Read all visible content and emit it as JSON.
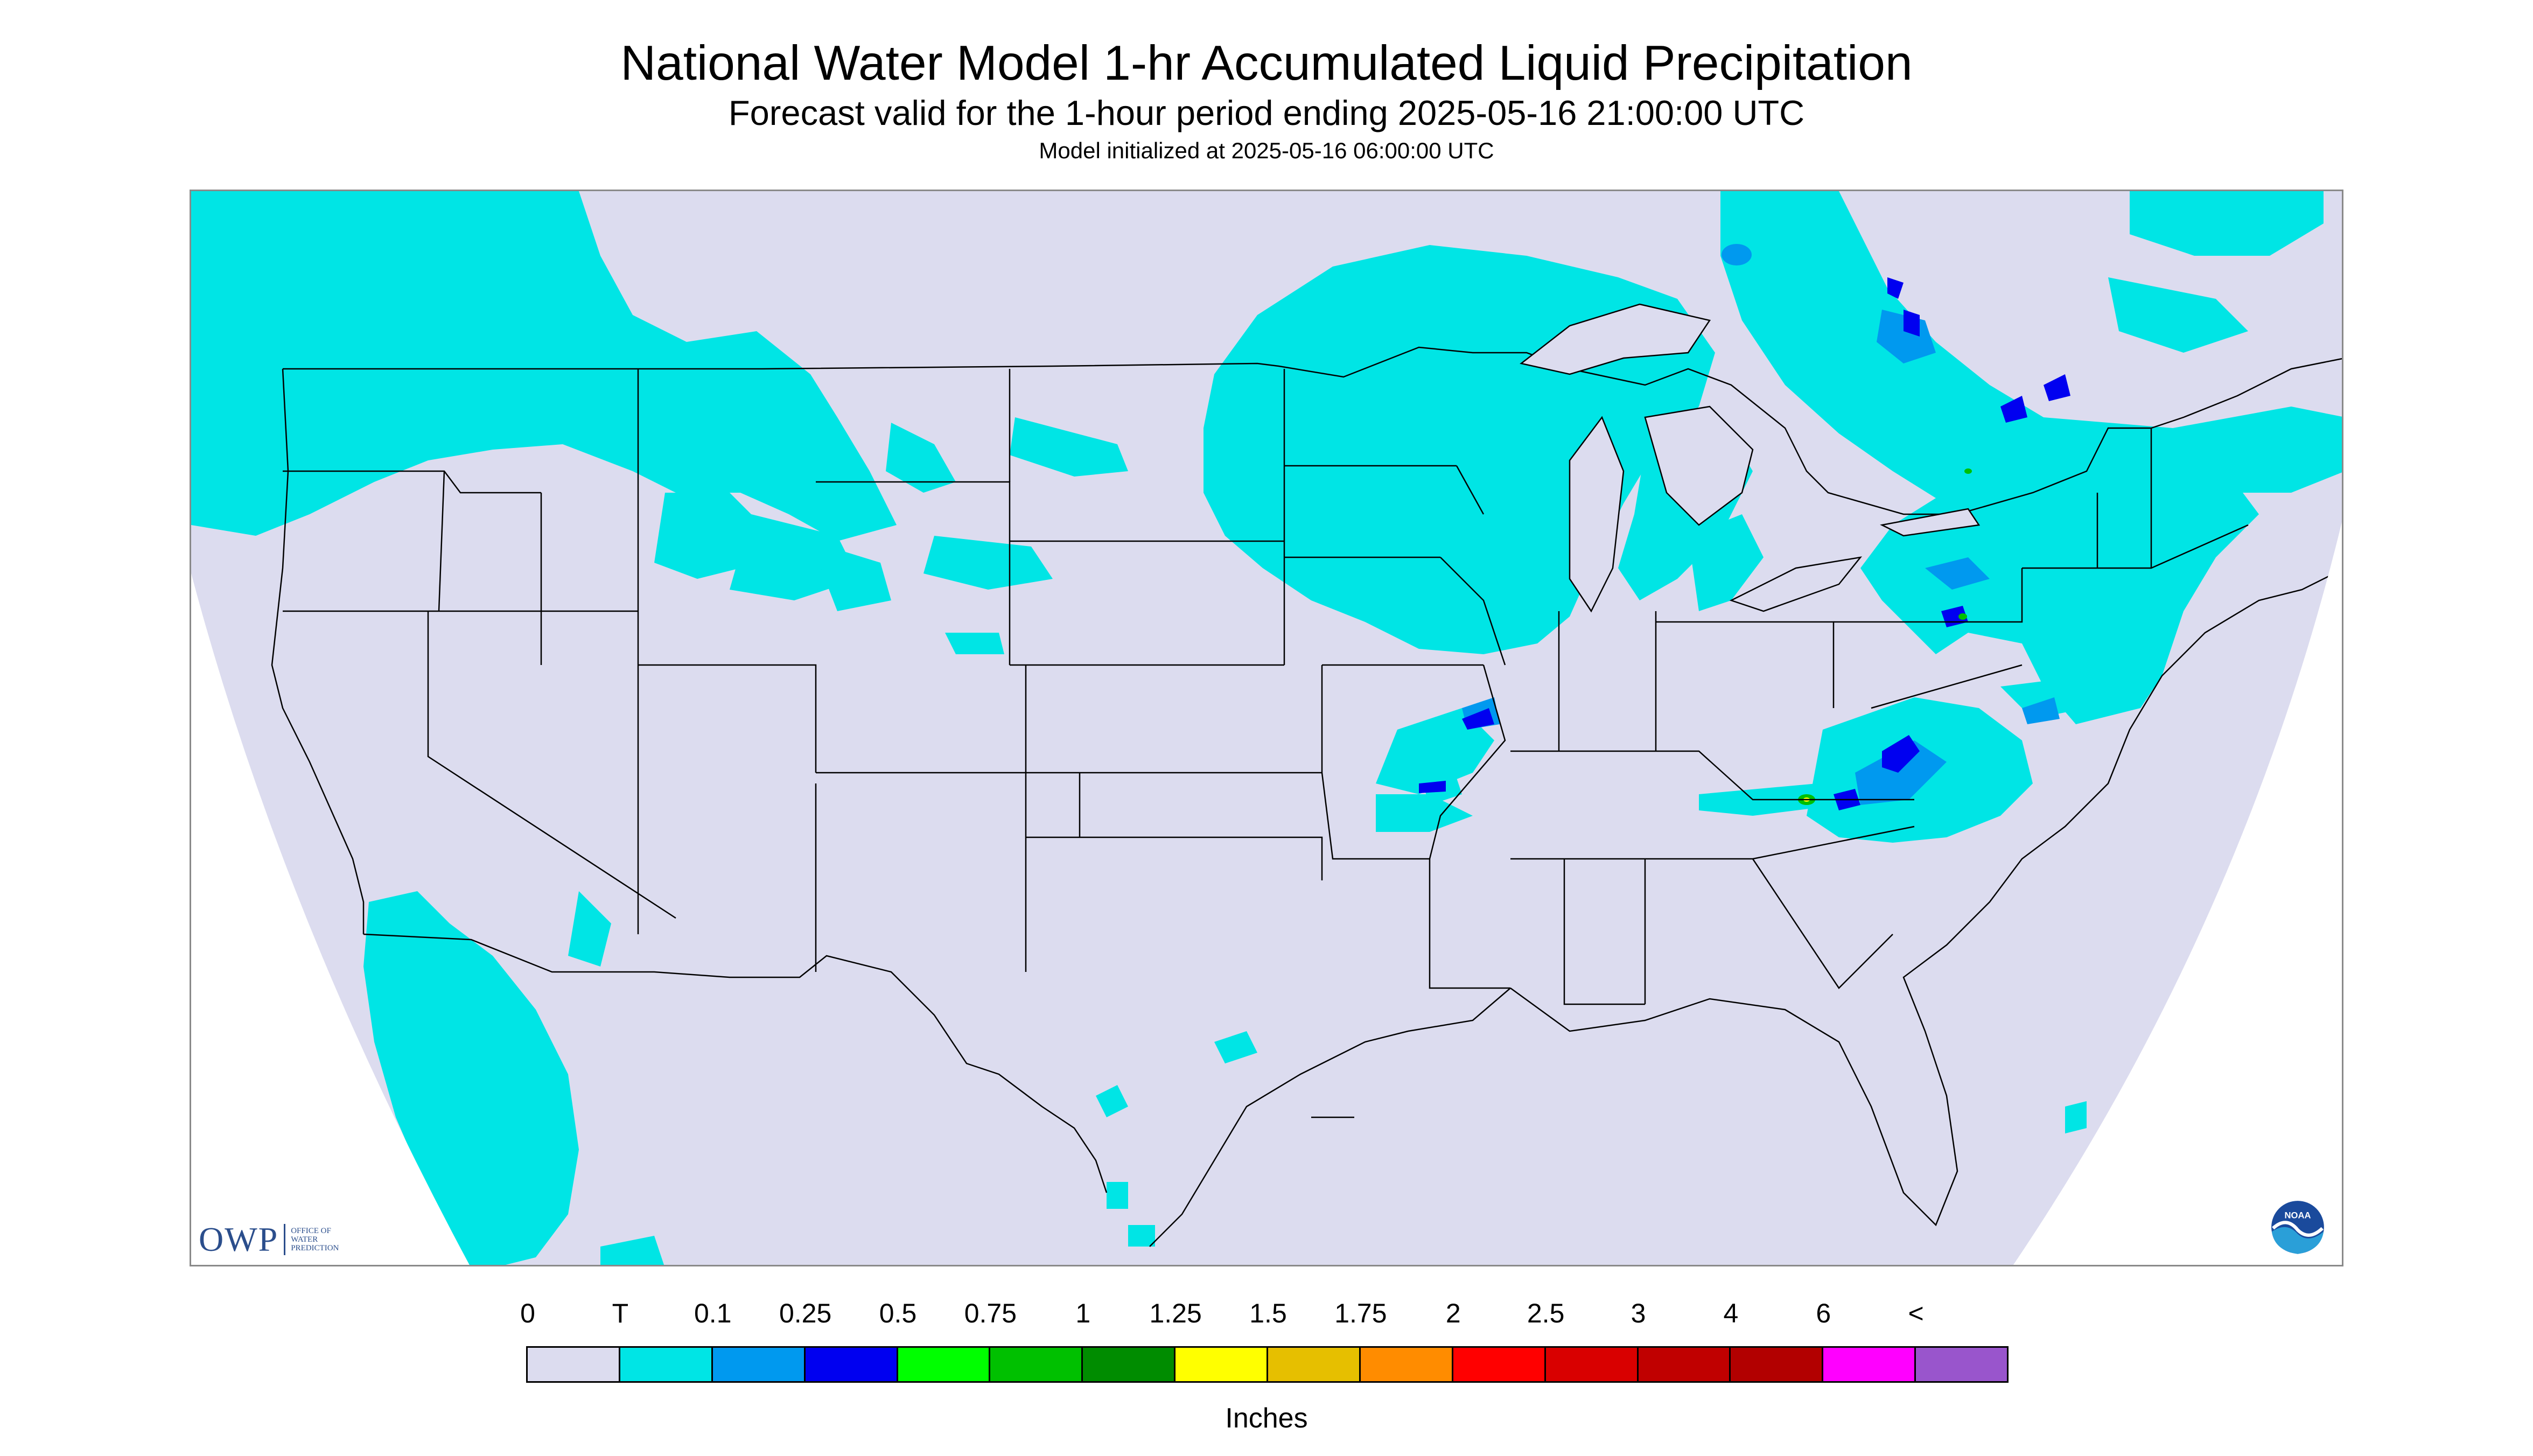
{
  "header": {
    "title": "National Water Model 1-hr Accumulated Liquid Precipitation",
    "subtitle": "Forecast valid for the 1-hour period ending 2025-05-16 21:00:00 UTC",
    "init_line": "Model initialized at 2025-05-16 06:00:00 UTC"
  },
  "map": {
    "background_color": "#dcdcef",
    "outside_color": "#ffffff",
    "precip_colors": {
      "trace": "#00e5e5",
      "light": "#0099ef",
      "moderate": "#0000f0",
      "green": "#00c000",
      "yellow": "#ffff00"
    },
    "features": [
      "state-boundaries",
      "country-boundaries",
      "coastlines",
      "great-lakes"
    ]
  },
  "logos": {
    "owp_letters": "OWP",
    "owp_sub": "OFFICE OF WATER PREDICTION",
    "noaa": "NOAA"
  },
  "legend": {
    "labels": [
      "0",
      "T",
      "0.1",
      "0.25",
      "0.5",
      "0.75",
      "1",
      "1.25",
      "1.5",
      "1.75",
      "2",
      "2.5",
      "3",
      "4",
      "6",
      "<"
    ],
    "colors": [
      "#dcdcef",
      "#00e5e5",
      "#0099ef",
      "#0000f0",
      "#00ff00",
      "#00c000",
      "#008c00",
      "#ffff00",
      "#e6bf00",
      "#ff8c00",
      "#ff0000",
      "#d90000",
      "#c00000",
      "#b20000",
      "#ff00ff",
      "#9955cc"
    ],
    "units": "Inches"
  }
}
